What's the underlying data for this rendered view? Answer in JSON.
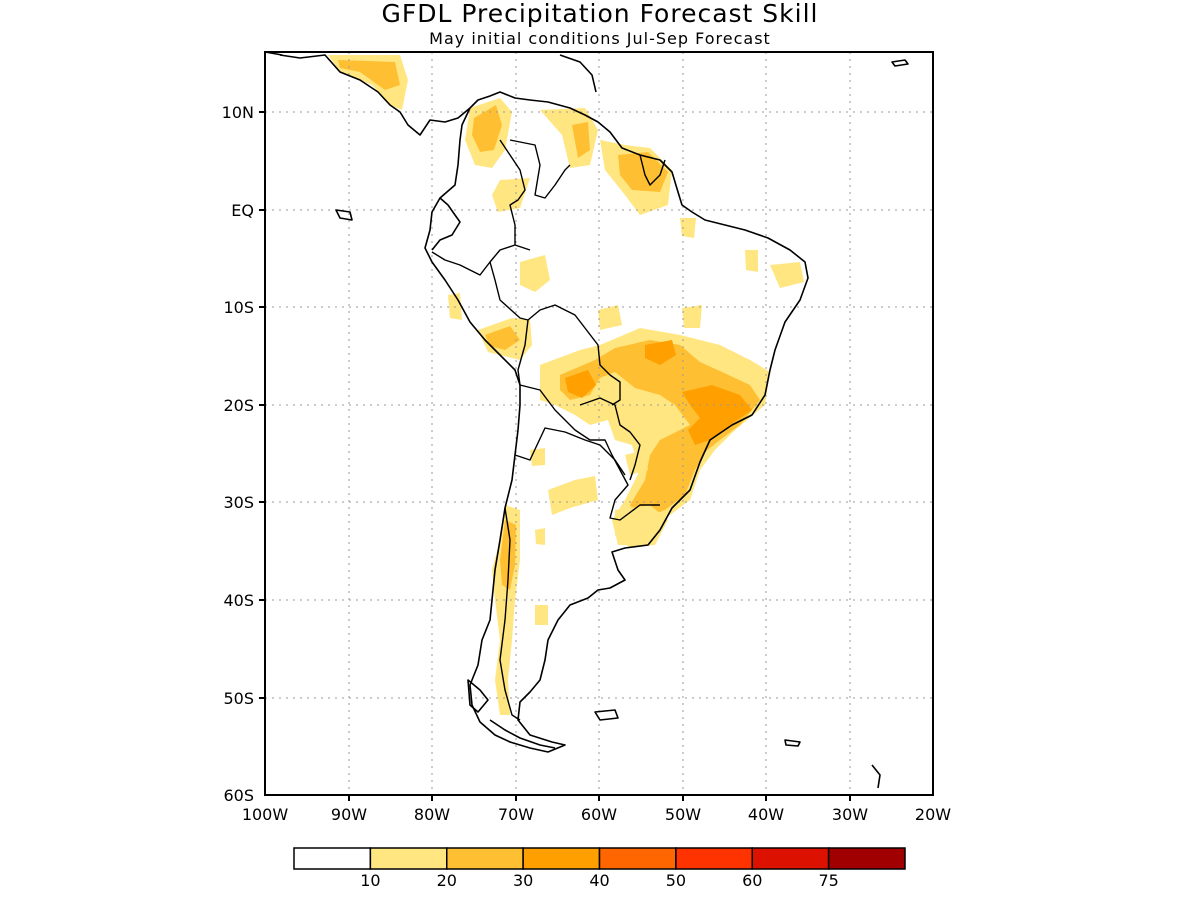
{
  "title": "GFDL Precipitation Forecast Skill",
  "subtitle": "May initial conditions  Jul-Sep Forecast",
  "map": {
    "lon_range": [
      -100,
      -20
    ],
    "lat_range": [
      -60,
      16
    ],
    "lon_ticks": [
      "100W",
      "90W",
      "80W",
      "70W",
      "60W",
      "50W",
      "40W",
      "30W",
      "20W"
    ],
    "lat_ticks": [
      "10N",
      "EQ",
      "10S",
      "20S",
      "30S",
      "40S",
      "50S",
      "60S"
    ],
    "gridlines": true
  },
  "colorbar": {
    "colors": [
      "#ffffff",
      "#ffe680",
      "#ffbf33",
      "#ff9f00",
      "#ff6600",
      "#ff3300",
      "#dd1100",
      "#a00000"
    ],
    "labels": [
      "10",
      "20",
      "30",
      "40",
      "50",
      "60",
      "75"
    ]
  }
}
